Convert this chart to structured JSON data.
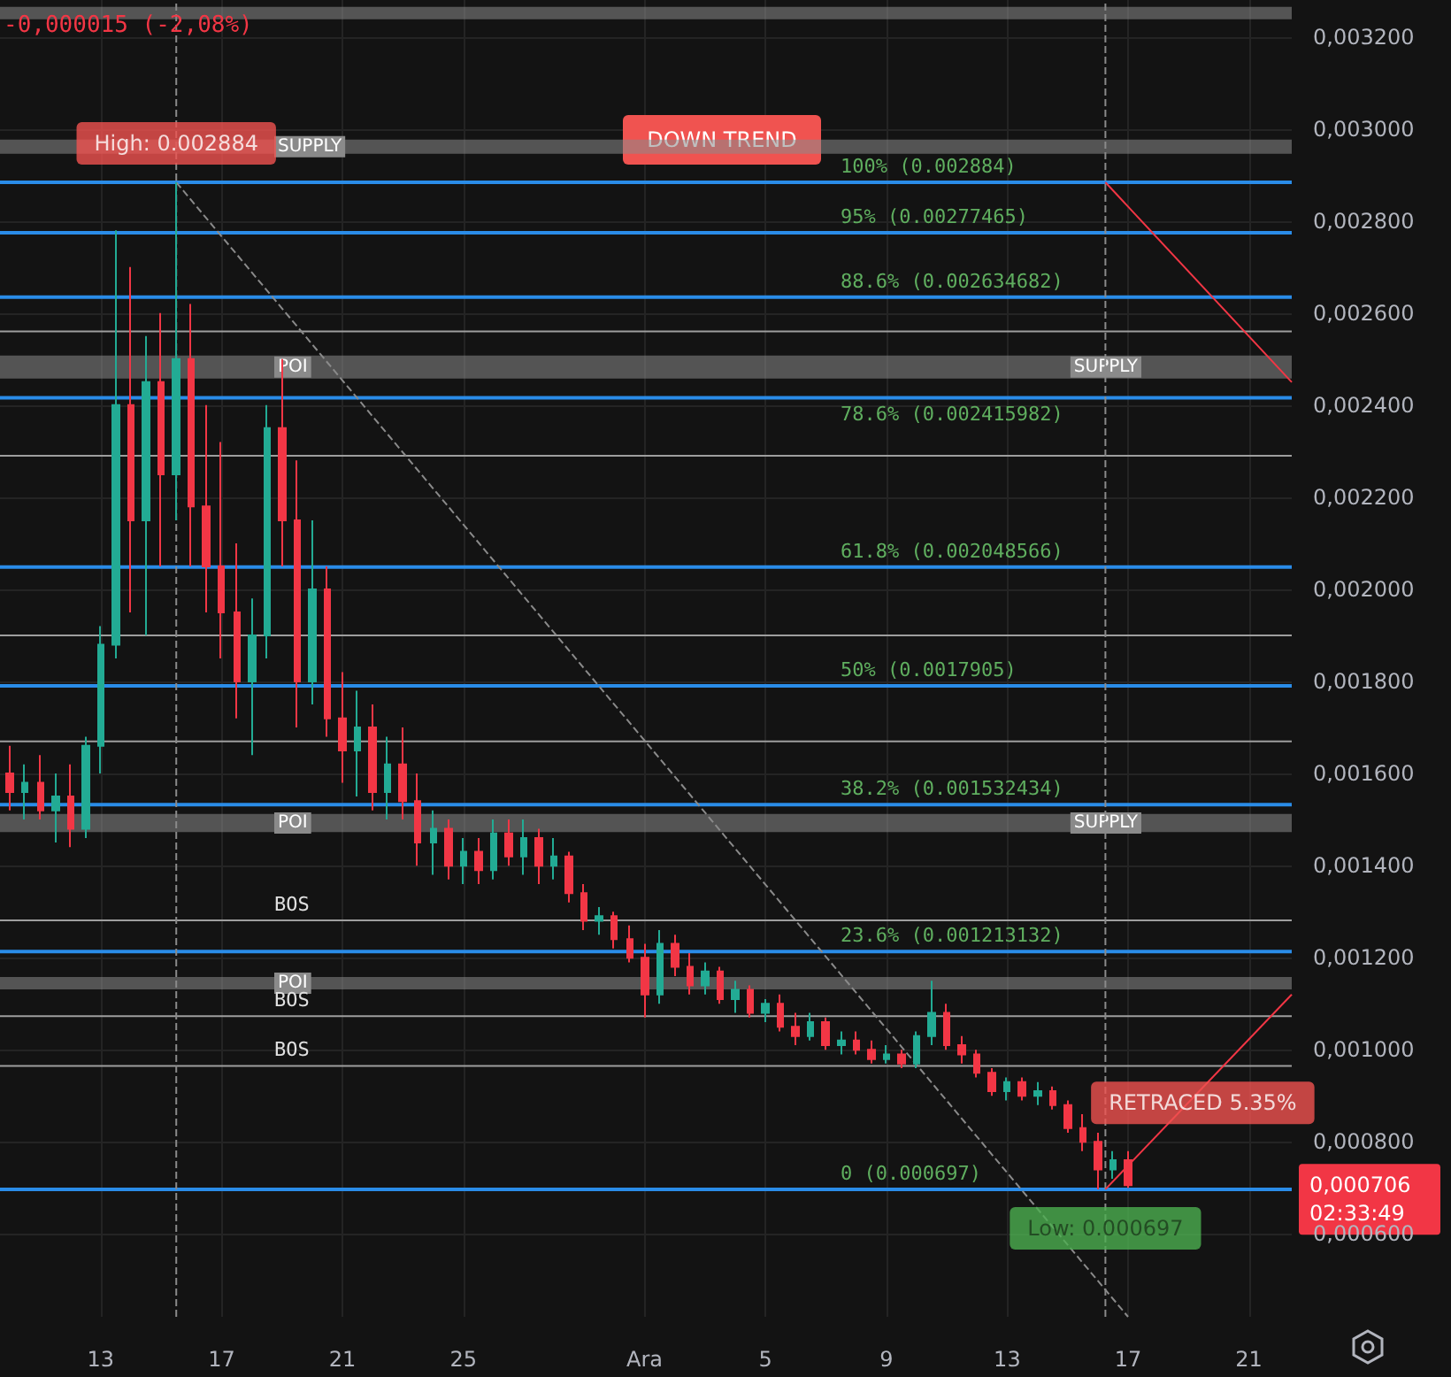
{
  "chart_data": {
    "type": "candlestick",
    "grid": true,
    "marker": "none",
    "xlim": [
      "--11-09T16:00",
      "--12-22T10:00"
    ],
    "ylim": [
      0.00042,
      0.00328
    ],
    "xticks": [
      {
        "value": "--11-13",
        "label": "13"
      },
      {
        "value": "--11-17",
        "label": "17"
      },
      {
        "value": "--11-21",
        "label": "21"
      },
      {
        "value": "--11-25",
        "label": "25"
      },
      {
        "value": "--12-01",
        "label": "Ara"
      },
      {
        "value": "--12-05",
        "label": "5"
      },
      {
        "value": "--12-09",
        "label": "9"
      },
      {
        "value": "--12-13",
        "label": "13"
      },
      {
        "value": "--12-17",
        "label": "17"
      },
      {
        "value": "--12-21",
        "label": "21"
      }
    ],
    "yticks": [
      {
        "value": 0.0006,
        "label": "0,000600"
      },
      {
        "value": 0.0008,
        "label": "0,000800"
      },
      {
        "value": 0.001,
        "label": "0,001000"
      },
      {
        "value": 0.0012,
        "label": "0,001200"
      },
      {
        "value": 0.0014,
        "label": "0,001400"
      },
      {
        "value": 0.0016,
        "label": "0,001600"
      },
      {
        "value": 0.0018,
        "label": "0,001800"
      },
      {
        "value": 0.002,
        "label": "0,002000"
      },
      {
        "value": 0.0022,
        "label": "0,002200"
      },
      {
        "value": 0.0024,
        "label": "0,002400"
      },
      {
        "value": 0.0026,
        "label": "0,002600"
      },
      {
        "value": 0.0028,
        "label": "0,002800"
      },
      {
        "value": 0.003,
        "label": "0,003000"
      },
      {
        "value": 0.0032,
        "label": "0,003200"
      }
    ],
    "x": [
      "--11-10T00:00",
      "--11-10T12:00",
      "--11-11T00:00",
      "--11-11T12:00",
      "--11-12T00:00",
      "--11-12T12:00",
      "--11-13T00:00",
      "--11-13T12:00",
      "--11-14T00:00",
      "--11-14T12:00",
      "--11-15T00:00",
      "--11-15T12:00",
      "--11-16T00:00",
      "--11-16T12:00",
      "--11-17T00:00",
      "--11-17T12:00",
      "--11-18T00:00",
      "--11-18T12:00",
      "--11-19T00:00",
      "--11-19T12:00",
      "--11-20T00:00",
      "--11-20T12:00",
      "--11-21T00:00",
      "--11-21T12:00",
      "--11-22T00:00",
      "--11-22T12:00",
      "--11-23T00:00",
      "--11-23T12:00",
      "--11-24T00:00",
      "--11-24T12:00",
      "--11-25T00:00",
      "--11-25T12:00",
      "--11-26T00:00",
      "--11-26T12:00",
      "--11-27T00:00",
      "--11-27T12:00",
      "--11-28T00:00",
      "--11-28T12:00",
      "--11-29T00:00",
      "--11-29T12:00",
      "--11-30T00:00",
      "--11-30T12:00",
      "--12-01T00:00",
      "--12-01T12:00",
      "--12-02T00:00",
      "--12-02T12:00",
      "--12-03T00:00",
      "--12-03T12:00",
      "--12-04T00:00",
      "--12-04T12:00",
      "--12-05T00:00",
      "--12-05T12:00",
      "--12-06T00:00",
      "--12-06T12:00",
      "--12-07T00:00",
      "--12-07T12:00",
      "--12-08T00:00",
      "--12-08T12:00",
      "--12-09T00:00",
      "--12-09T12:00",
      "--12-10T00:00",
      "--12-10T12:00",
      "--12-11T00:00",
      "--12-11T12:00",
      "--12-12T00:00",
      "--12-12T12:00",
      "--12-13T00:00",
      "--12-13T12:00",
      "--12-14T00:00",
      "--12-14T12:00",
      "--12-15T00:00",
      "--12-15T12:00",
      "--12-16T00:00",
      "--12-16T12:00",
      "--12-17T00:00"
    ],
    "ohlc": [
      [
        0.0016,
        0.00166,
        0.00152,
        0.00156
      ],
      [
        0.00156,
        0.00162,
        0.0015,
        0.00158
      ],
      [
        0.00158,
        0.00164,
        0.0015,
        0.00152
      ],
      [
        0.00152,
        0.0016,
        0.00145,
        0.00155
      ],
      [
        0.00155,
        0.00162,
        0.00144,
        0.00148
      ],
      [
        0.00148,
        0.00168,
        0.00146,
        0.00166
      ],
      [
        0.00166,
        0.00192,
        0.0016,
        0.00188
      ],
      [
        0.00188,
        0.00278,
        0.00185,
        0.0024
      ],
      [
        0.0024,
        0.0027,
        0.00195,
        0.00215
      ],
      [
        0.00215,
        0.00255,
        0.0019,
        0.00245
      ],
      [
        0.00245,
        0.0026,
        0.00205,
        0.00225
      ],
      [
        0.00225,
        0.002884,
        0.00215,
        0.0025
      ],
      [
        0.0025,
        0.00262,
        0.00205,
        0.00218
      ],
      [
        0.00218,
        0.0024,
        0.00195,
        0.00205
      ],
      [
        0.00205,
        0.00232,
        0.00185,
        0.00195
      ],
      [
        0.00195,
        0.0021,
        0.00172,
        0.0018
      ],
      [
        0.0018,
        0.00198,
        0.00164,
        0.0019
      ],
      [
        0.0019,
        0.0024,
        0.00185,
        0.00235
      ],
      [
        0.00235,
        0.0025,
        0.00205,
        0.00215
      ],
      [
        0.00215,
        0.00228,
        0.0017,
        0.0018
      ],
      [
        0.0018,
        0.00215,
        0.00175,
        0.002
      ],
      [
        0.002,
        0.00205,
        0.00168,
        0.00172
      ],
      [
        0.00172,
        0.00182,
        0.00158,
        0.00165
      ],
      [
        0.00165,
        0.00178,
        0.00155,
        0.0017
      ],
      [
        0.0017,
        0.00175,
        0.00152,
        0.00156
      ],
      [
        0.00156,
        0.00168,
        0.0015,
        0.00162
      ],
      [
        0.00162,
        0.0017,
        0.0015,
        0.00154
      ],
      [
        0.00154,
        0.0016,
        0.0014,
        0.00145
      ],
      [
        0.00145,
        0.00152,
        0.00138,
        0.00148
      ],
      [
        0.00148,
        0.0015,
        0.00137,
        0.0014
      ],
      [
        0.0014,
        0.00146,
        0.00136,
        0.00143
      ],
      [
        0.00143,
        0.00146,
        0.00136,
        0.00139
      ],
      [
        0.00139,
        0.0015,
        0.00137,
        0.00147
      ],
      [
        0.00147,
        0.0015,
        0.0014,
        0.00142
      ],
      [
        0.00142,
        0.0015,
        0.00138,
        0.00146
      ],
      [
        0.00146,
        0.00148,
        0.00136,
        0.0014
      ],
      [
        0.0014,
        0.00146,
        0.00137,
        0.00142
      ],
      [
        0.00142,
        0.00143,
        0.00132,
        0.00134
      ],
      [
        0.00134,
        0.00136,
        0.00126,
        0.00128
      ],
      [
        0.00128,
        0.00131,
        0.00125,
        0.00129
      ],
      [
        0.00129,
        0.0013,
        0.00122,
        0.00124
      ],
      [
        0.00124,
        0.00127,
        0.00119,
        0.0012
      ],
      [
        0.0012,
        0.00123,
        0.00107,
        0.00112
      ],
      [
        0.00112,
        0.00126,
        0.0011,
        0.00123
      ],
      [
        0.00123,
        0.00125,
        0.00116,
        0.00118
      ],
      [
        0.00118,
        0.00121,
        0.00112,
        0.00114
      ],
      [
        0.00114,
        0.00119,
        0.00112,
        0.00117
      ],
      [
        0.00117,
        0.00118,
        0.0011,
        0.00111
      ],
      [
        0.00111,
        0.00115,
        0.00108,
        0.00113
      ],
      [
        0.00113,
        0.00114,
        0.00107,
        0.00108
      ],
      [
        0.00108,
        0.00111,
        0.00106,
        0.0011
      ],
      [
        0.0011,
        0.00112,
        0.00104,
        0.00105
      ],
      [
        0.00105,
        0.00108,
        0.00101,
        0.00103
      ],
      [
        0.00103,
        0.00108,
        0.00102,
        0.00106
      ],
      [
        0.00106,
        0.00107,
        0.001,
        0.00101
      ],
      [
        0.00101,
        0.00104,
        0.00099,
        0.00102
      ],
      [
        0.00102,
        0.00104,
        0.00099,
        0.001
      ],
      [
        0.001,
        0.00102,
        0.00097,
        0.00098
      ],
      [
        0.00098,
        0.00101,
        0.00097,
        0.00099
      ],
      [
        0.00099,
        0.001,
        0.00096,
        0.00097
      ],
      [
        0.00097,
        0.00104,
        0.00096,
        0.00103
      ],
      [
        0.00103,
        0.00115,
        0.00101,
        0.00108
      ],
      [
        0.00108,
        0.0011,
        0.001,
        0.00101
      ],
      [
        0.00101,
        0.00103,
        0.00097,
        0.00099
      ],
      [
        0.00099,
        0.001,
        0.00094,
        0.00095
      ],
      [
        0.00095,
        0.00096,
        0.0009,
        0.00091
      ],
      [
        0.00091,
        0.00094,
        0.00089,
        0.00093
      ],
      [
        0.00093,
        0.00094,
        0.00089,
        0.0009
      ],
      [
        0.0009,
        0.00093,
        0.00088,
        0.00091
      ],
      [
        0.00091,
        0.00092,
        0.00087,
        0.00088
      ],
      [
        0.00088,
        0.00089,
        0.00082,
        0.00083
      ],
      [
        0.00083,
        0.00086,
        0.00078,
        0.0008
      ],
      [
        0.0008,
        0.00082,
        0.000697,
        0.00074
      ],
      [
        0.00074,
        0.00078,
        0.00072,
        0.00076
      ],
      [
        0.00076,
        0.00078,
        0.0007,
        0.000706
      ]
    ],
    "series": [
      {
        "type": "line",
        "color": "#8a8a8a",
        "line_style": "dashed",
        "x": [
          "--11-15T12:00",
          "--12-17T00:00"
        ],
        "values": [
          0.002884,
          0.00042
        ]
      },
      {
        "type": "line",
        "color": "#f23645",
        "line_style": "solid",
        "x": [
          "--12-16T06:00",
          "--12-22T10:00"
        ],
        "values": [
          0.002884,
          0.00245
        ]
      },
      {
        "type": "line",
        "color": "#f23645",
        "line_style": "solid",
        "x": [
          "--12-16T06:00",
          "--12-22T10:00"
        ],
        "values": [
          0.000697,
          0.00112
        ]
      }
    ],
    "ref_lines": [
      {
        "axis": "y",
        "value": 0.002884,
        "label": "100% (0.002884)",
        "color": "#2a8ce8"
      },
      {
        "axis": "y",
        "value": 0.00277465,
        "label": "95% (0.00277465)",
        "color": "#2a8ce8"
      },
      {
        "axis": "y",
        "value": 0.002634682,
        "label": "88.6% (0.002634682)",
        "color": "#2a8ce8"
      },
      {
        "axis": "y",
        "value": 0.002415982,
        "label": "78.6% (0.002415982)",
        "color": "#2a8ce8"
      },
      {
        "axis": "y",
        "value": 0.002048566,
        "label": "61.8% (0.002048566)",
        "color": "#2a8ce8"
      },
      {
        "axis": "y",
        "value": 0.0017905,
        "label": "50% (0.0017905)",
        "color": "#2a8ce8"
      },
      {
        "axis": "y",
        "value": 0.001532434,
        "label": "38.2% (0.001532434)",
        "color": "#2a8ce8"
      },
      {
        "axis": "y",
        "value": 0.001213132,
        "label": "23.6% (0.001213132)",
        "color": "#2a8ce8"
      },
      {
        "axis": "y",
        "value": 0.000697,
        "label": "0 (0.000697)",
        "color": "#2a8ce8"
      },
      {
        "axis": "y",
        "value": 0.00256,
        "color": "#9e9e9e"
      },
      {
        "axis": "y",
        "value": 0.00229,
        "color": "#9e9e9e"
      },
      {
        "axis": "y",
        "value": 0.0019,
        "color": "#9e9e9e"
      },
      {
        "axis": "y",
        "value": 0.00167,
        "color": "#9e9e9e"
      },
      {
        "axis": "y",
        "value": 0.001281,
        "label": "BOS",
        "color": "#9e9e9e"
      },
      {
        "axis": "y",
        "value": 0.001073,
        "label": "BOS",
        "color": "#9e9e9e"
      },
      {
        "axis": "y",
        "value": 0.000965,
        "label": "BOS",
        "color": "#9e9e9e"
      },
      {
        "axis": "x",
        "value": "--11-15T12:00",
        "color": "#8a8a8a",
        "line_style": "dashed"
      },
      {
        "axis": "x",
        "value": "--12-16T06:00",
        "color": "#8a8a8a",
        "line_style": "dashed"
      }
    ],
    "bands": [
      {
        "axis": "y",
        "from": 0.003238,
        "to": 0.003265,
        "color": "#8a8a8a"
      },
      {
        "axis": "y",
        "from": 0.002946,
        "to": 0.002977,
        "label": "SUPPLY",
        "color": "#8a8a8a"
      },
      {
        "axis": "y",
        "from": 0.002458,
        "to": 0.002508,
        "label": "POI",
        "color": "#8a8a8a"
      },
      {
        "axis": "y",
        "from": 0.002458,
        "to": 0.002508,
        "label": "SUPPLY",
        "color": "#8a8a8a"
      },
      {
        "axis": "y",
        "from": 0.001473,
        "to": 0.001512,
        "label": "POI",
        "color": "#8a8a8a"
      },
      {
        "axis": "y",
        "from": 0.001473,
        "to": 0.001512,
        "label": "SUPPLY",
        "color": "#8a8a8a"
      },
      {
        "axis": "y",
        "from": 0.001131,
        "to": 0.001158,
        "label": "POI",
        "color": "#8a8a8a"
      }
    ],
    "annotations": [
      "-0,000015 (-2,08%)",
      "DOWN TREND",
      "0,000706\n02:33:49",
      {
        "text": "High: 0.002884",
        "x": "--11-15T12:00",
        "y": 0.002884
      },
      {
        "text": "RETRACED 5.35%",
        "x": "--12-16T06:00",
        "y": 0.0008
      },
      {
        "text": "Low: 0.000697",
        "x": "--12-16T06:00",
        "y": 0.000697
      }
    ]
  }
}
